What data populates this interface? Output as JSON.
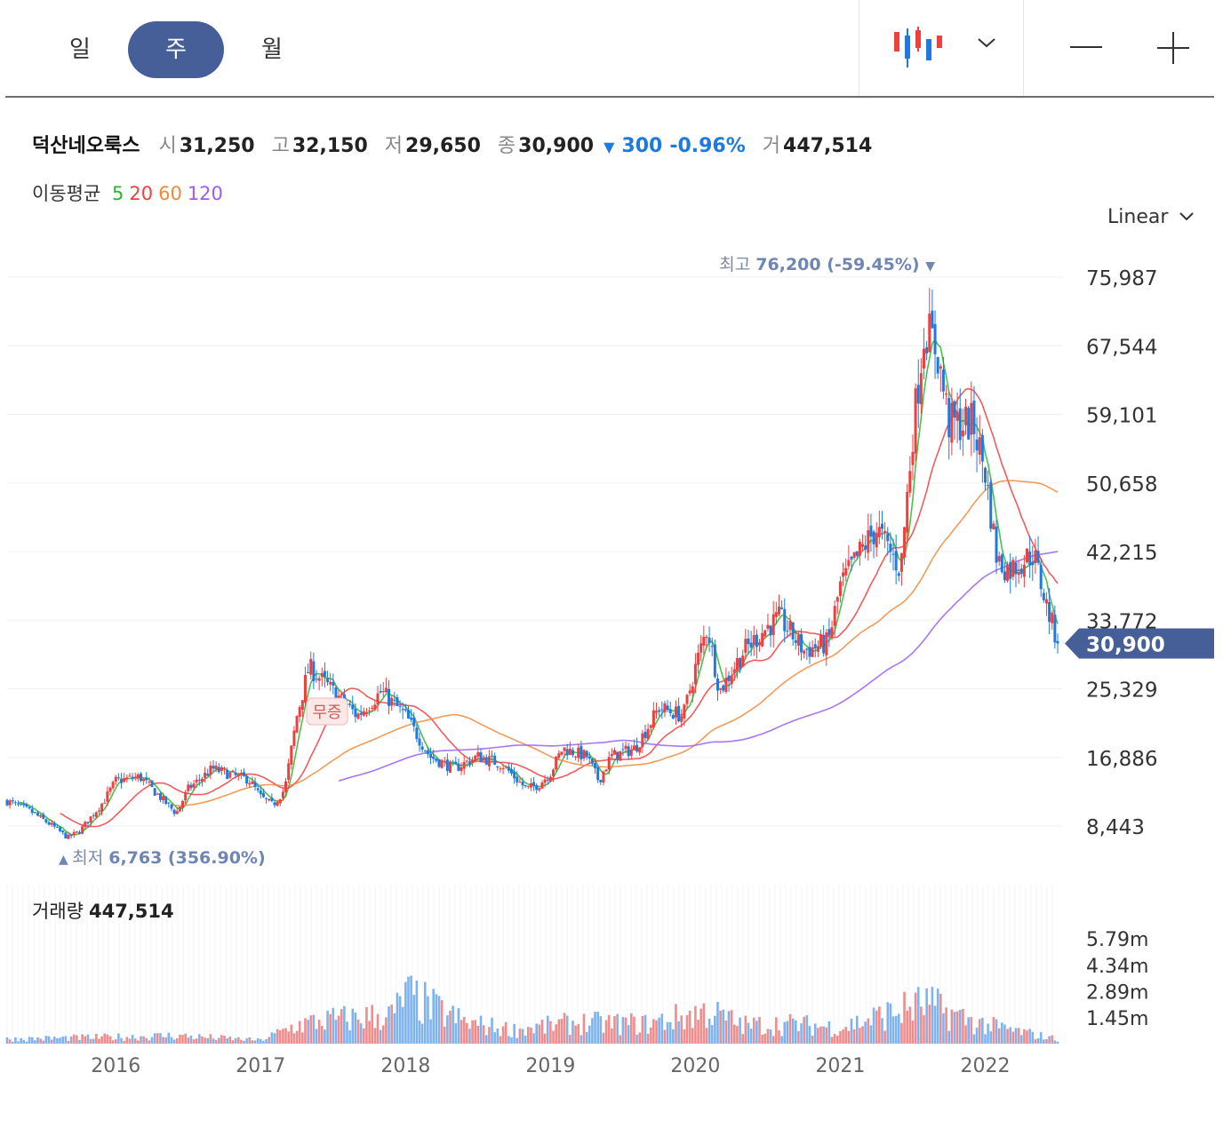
{
  "toolbar": {
    "periods": [
      {
        "label": "일",
        "active": false
      },
      {
        "label": "주",
        "active": true
      },
      {
        "label": "월",
        "active": false
      }
    ],
    "chart_type_icon": "candlestick-icon",
    "dropdown_icon": "chevron-down-icon",
    "zoom_out_icon": "minus-icon",
    "zoom_in_icon": "plus-icon"
  },
  "info": {
    "name": "덕산네오룩스",
    "open_label": "시",
    "open": "31,250",
    "high_label": "고",
    "high": "32,150",
    "low_label": "저",
    "low": "29,650",
    "close_label": "종",
    "close": "30,900",
    "change_arrow": "▼",
    "change": "300",
    "change_pct": "-0.96%",
    "volume_label": "거",
    "volume": "447,514"
  },
  "ma": {
    "label": "이동평균",
    "periods": [
      {
        "label": "5",
        "color": "#2bb52f"
      },
      {
        "label": "20",
        "color": "#ef3f3f"
      },
      {
        "label": "60",
        "color": "#f08a3c"
      },
      {
        "label": "120",
        "color": "#9b5ef2"
      }
    ]
  },
  "scale_mode": "Linear",
  "colors": {
    "up": "#ef3f3f",
    "down": "#1f7ae0",
    "accent": "#465f98",
    "label": "#6f86b5"
  },
  "chart_data": {
    "type": "candlestick",
    "interval": "weekly",
    "y_ticks": [
      "75,987",
      "67,544",
      "59,101",
      "50,658",
      "42,215",
      "33,772",
      "25,329",
      "16,886",
      "8,443"
    ],
    "x_ticks": [
      "2016",
      "2017",
      "2018",
      "2019",
      "2020",
      "2021",
      "2022"
    ],
    "ylim": [
      3000,
      80000
    ],
    "x_range": [
      "2015-04",
      "2022-07"
    ],
    "current_price": "30,900",
    "high_annotation": {
      "label": "최고",
      "value": "76,200 (-59.45%)",
      "marker": "▼"
    },
    "low_annotation": {
      "label": "최저",
      "value": "6,763 (356.90%)",
      "marker": "▲"
    },
    "event_badge": "무증",
    "price_path": [
      [
        "2015-04",
        11500
      ],
      [
        "2015-06",
        10200
      ],
      [
        "2015-08",
        8200
      ],
      [
        "2015-09",
        7000
      ],
      [
        "2015-10",
        7800
      ],
      [
        "2015-12",
        11500
      ],
      [
        "2016-01",
        14000
      ],
      [
        "2016-03",
        14500
      ],
      [
        "2016-05",
        11500
      ],
      [
        "2016-06",
        10000
      ],
      [
        "2016-07",
        13000
      ],
      [
        "2016-09",
        15500
      ],
      [
        "2016-11",
        14500
      ],
      [
        "2016-12",
        14200
      ],
      [
        "2017-01",
        12000
      ],
      [
        "2017-02",
        11000
      ],
      [
        "2017-03",
        13000
      ],
      [
        "2017-04",
        22000
      ],
      [
        "2017-05",
        28000
      ],
      [
        "2017-07",
        25000
      ],
      [
        "2017-09",
        22000
      ],
      [
        "2017-11",
        25000
      ],
      [
        "2018-01",
        22000
      ],
      [
        "2018-03",
        17000
      ],
      [
        "2018-05",
        15500
      ],
      [
        "2018-07",
        17000
      ],
      [
        "2018-09",
        16000
      ],
      [
        "2018-11",
        13000
      ],
      [
        "2018-12",
        13500
      ],
      [
        "2019-01",
        15000
      ],
      [
        "2019-02",
        18000
      ],
      [
        "2019-04",
        17000
      ],
      [
        "2019-05",
        14000
      ],
      [
        "2019-06",
        17000
      ],
      [
        "2019-08",
        18000
      ],
      [
        "2019-10",
        23000
      ],
      [
        "2019-12",
        22000
      ],
      [
        "2020-01",
        28000
      ],
      [
        "2020-02",
        33000
      ],
      [
        "2020-03",
        25000
      ],
      [
        "2020-05",
        30000
      ],
      [
        "2020-07",
        33000
      ],
      [
        "2020-08",
        34000
      ],
      [
        "2020-10",
        30000
      ],
      [
        "2020-12",
        31000
      ],
      [
        "2021-01",
        38000
      ],
      [
        "2021-03",
        43000
      ],
      [
        "2021-04",
        45000
      ],
      [
        "2021-06",
        40000
      ],
      [
        "2021-07",
        57000
      ],
      [
        "2021-08",
        70000
      ],
      [
        "2021-09",
        67000
      ],
      [
        "2021-10",
        58000
      ],
      [
        "2021-12",
        58000
      ],
      [
        "2022-01",
        52000
      ],
      [
        "2022-02",
        41000
      ],
      [
        "2022-03",
        40000
      ],
      [
        "2022-05",
        42000
      ],
      [
        "2022-06",
        36000
      ],
      [
        "2022-07",
        30900
      ]
    ],
    "series": [
      {
        "name": "5",
        "color": "#2bb52f"
      },
      {
        "name": "20",
        "color": "#ef3f3f"
      },
      {
        "name": "60",
        "color": "#f08a3c"
      },
      {
        "name": "120",
        "color": "#9b5ef2"
      }
    ],
    "volume": {
      "title": "거래량",
      "current": "447,514",
      "y_ticks": [
        "5.79m",
        "4.34m",
        "2.89m",
        "1.45m"
      ],
      "ylim": [
        0,
        5.79
      ],
      "unit": "m",
      "peaks": [
        [
          "2015-04",
          0.4
        ],
        [
          "2016-02",
          0.6
        ],
        [
          "2016-06",
          0.7
        ],
        [
          "2017-01",
          0.3
        ],
        [
          "2017-04",
          1.6
        ],
        [
          "2017-06",
          2.0
        ],
        [
          "2017-12",
          2.5
        ],
        [
          "2018-01",
          4.2
        ],
        [
          "2018-06",
          1.8
        ],
        [
          "2018-10",
          1.2
        ],
        [
          "2019-03",
          1.8
        ],
        [
          "2019-09",
          1.7
        ],
        [
          "2020-02",
          2.8
        ],
        [
          "2020-05",
          1.6
        ],
        [
          "2020-09",
          1.7
        ],
        [
          "2021-01",
          1.4
        ],
        [
          "2021-08",
          3.5
        ],
        [
          "2021-12",
          1.9
        ],
        [
          "2022-02",
          1.4
        ],
        [
          "2022-07",
          0.4
        ]
      ]
    }
  }
}
